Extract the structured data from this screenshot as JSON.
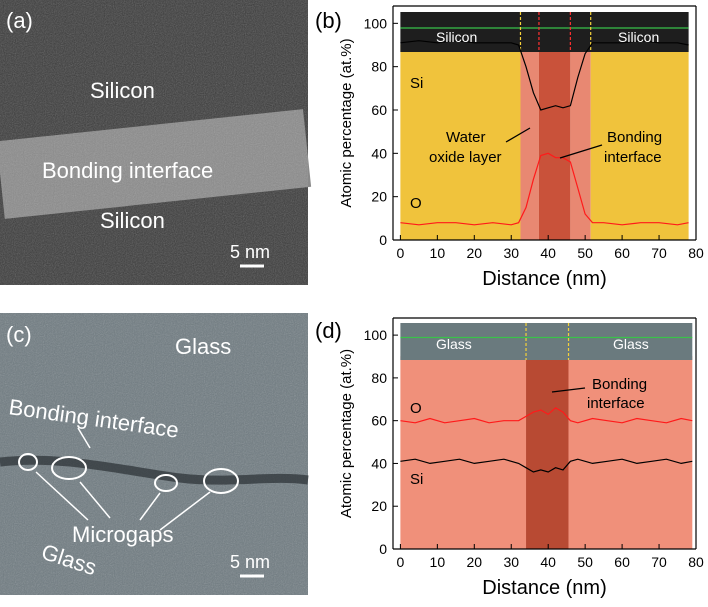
{
  "panels": {
    "a": {
      "label": "(a)",
      "texts": [
        "Silicon",
        "Bonding interface",
        "Silicon"
      ],
      "scale_bar": "5 nm"
    },
    "b": {
      "label": "(b)",
      "inset_texts": [
        "Silicon",
        "Silicon"
      ],
      "series_labels": [
        "Si",
        "O"
      ],
      "annotations": [
        "Water",
        "oxide layer",
        "Bonding",
        "interface"
      ]
    },
    "c": {
      "label": "(c)",
      "texts": [
        "Glass",
        "Bonding interface",
        "Microgaps",
        "Glass"
      ],
      "scale_bar": "5 nm"
    },
    "d": {
      "label": "(d)",
      "inset_texts": [
        "Glass",
        "Glass"
      ],
      "series_labels": [
        "O",
        "Si"
      ],
      "annotations": [
        "Bonding",
        "interface"
      ]
    }
  },
  "colors": {
    "silicon_region": "#f0c33c",
    "oxide_region": "#e88872",
    "interface_region": "#c9523a",
    "glass_region": "#f0907a",
    "glass_interface": "#b84a33",
    "si_line": "#000000",
    "o_line": "#ff1a1a"
  },
  "chart_data": [
    {
      "type": "line",
      "panel": "b",
      "xlabel": "Distance (nm)",
      "ylabel": "Atomic percentage (at.%)",
      "xlim": [
        -2,
        80
      ],
      "ylim": [
        0,
        108
      ],
      "x_ticks": [
        0,
        10,
        20,
        30,
        40,
        50,
        60,
        70,
        80
      ],
      "y_ticks": [
        0,
        20,
        40,
        60,
        80,
        100
      ],
      "regions": [
        {
          "from": 0,
          "to": 32.5,
          "kind": "silicon"
        },
        {
          "from": 32.5,
          "to": 37.5,
          "kind": "oxide"
        },
        {
          "from": 37.5,
          "to": 46,
          "kind": "interface"
        },
        {
          "from": 46,
          "to": 51.5,
          "kind": "oxide"
        },
        {
          "from": 51.5,
          "to": 78,
          "kind": "silicon"
        }
      ],
      "series": [
        {
          "name": "Si",
          "x": [
            0,
            5,
            10,
            15,
            20,
            25,
            30,
            32,
            34,
            36,
            38,
            40,
            42,
            44,
            46,
            48,
            50,
            52,
            55,
            60,
            65,
            70,
            75,
            78
          ],
          "values": [
            91,
            92,
            91,
            92,
            91,
            91,
            91,
            90,
            80,
            68,
            60,
            61,
            62,
            61,
            62,
            75,
            86,
            91,
            91,
            91,
            92,
            91,
            91,
            90
          ]
        },
        {
          "name": "O",
          "x": [
            0,
            5,
            10,
            15,
            20,
            25,
            30,
            32,
            34,
            36,
            38,
            40,
            42,
            44,
            46,
            48,
            50,
            52,
            55,
            60,
            65,
            70,
            75,
            78
          ],
          "values": [
            8,
            7,
            8,
            8,
            7,
            8,
            7,
            8,
            15,
            28,
            39,
            40,
            38,
            38,
            36,
            24,
            12,
            8,
            8,
            7,
            8,
            8,
            7,
            8
          ]
        }
      ]
    },
    {
      "type": "line",
      "panel": "d",
      "xlabel": "Distance (nm)",
      "ylabel": "Atomic percentage (at.%)",
      "xlim": [
        -2,
        80
      ],
      "ylim": [
        0,
        108
      ],
      "x_ticks": [
        0,
        10,
        20,
        30,
        40,
        50,
        60,
        70,
        80
      ],
      "y_ticks": [
        0,
        20,
        40,
        60,
        80,
        100
      ],
      "regions": [
        {
          "from": 0,
          "to": 34,
          "kind": "glass"
        },
        {
          "from": 34,
          "to": 45.5,
          "kind": "glass_interface"
        },
        {
          "from": 45.5,
          "to": 79,
          "kind": "glass"
        }
      ],
      "series": [
        {
          "name": "O",
          "x": [
            0,
            4,
            8,
            12,
            16,
            20,
            24,
            28,
            32,
            34,
            36,
            38,
            40,
            42,
            44,
            46,
            48,
            52,
            56,
            60,
            64,
            68,
            72,
            76,
            79
          ],
          "values": [
            60,
            59,
            61,
            59,
            60,
            61,
            59,
            60,
            60,
            62,
            64,
            65,
            63,
            66,
            64,
            60,
            59,
            61,
            60,
            59,
            61,
            60,
            59,
            61,
            60
          ]
        },
        {
          "name": "Si",
          "x": [
            0,
            4,
            8,
            12,
            16,
            20,
            24,
            28,
            32,
            34,
            36,
            38,
            40,
            42,
            44,
            46,
            48,
            52,
            56,
            60,
            64,
            68,
            72,
            76,
            79
          ],
          "values": [
            41,
            42,
            40,
            41,
            42,
            40,
            41,
            42,
            40,
            38,
            36,
            37,
            36,
            38,
            37,
            41,
            42,
            40,
            41,
            42,
            40,
            41,
            42,
            40,
            41
          ]
        }
      ]
    }
  ]
}
